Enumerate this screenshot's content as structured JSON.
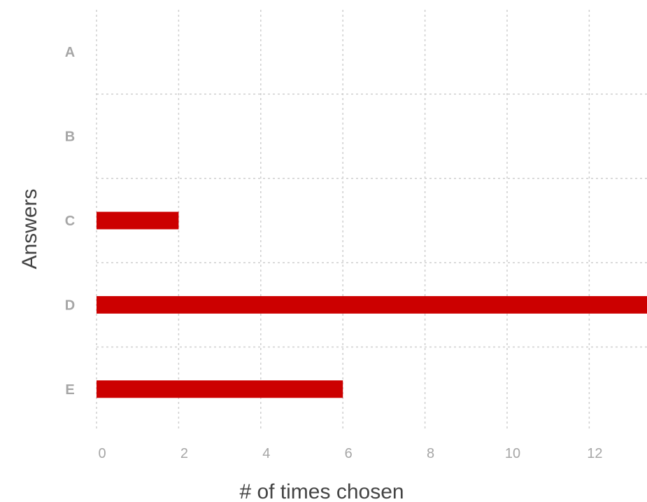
{
  "chart_data": {
    "type": "bar",
    "orientation": "horizontal",
    "categories": [
      "A",
      "B",
      "C",
      "D",
      "E"
    ],
    "values": [
      0,
      0,
      2,
      14,
      6
    ],
    "xlabel": "# of times chosen",
    "ylabel": "Answers",
    "xlim": [
      0,
      13.4
    ],
    "xticks": [
      "0",
      "2",
      "4",
      "6",
      "8",
      "10",
      "12"
    ],
    "grid": true,
    "legend": "none",
    "bar_color": "#cc0000"
  }
}
